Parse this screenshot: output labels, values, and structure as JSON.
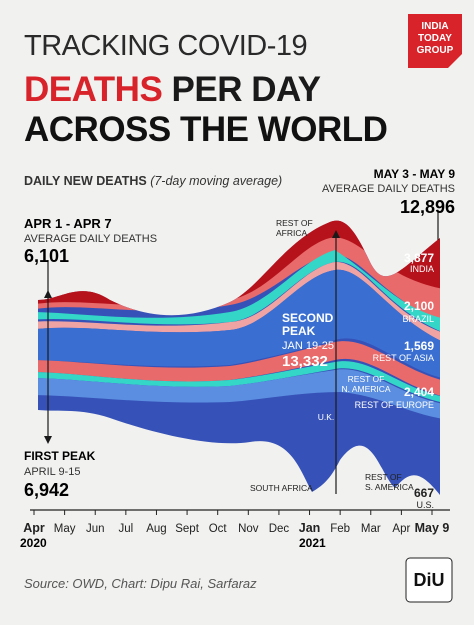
{
  "header": {
    "title_line1": "TRACKING COVID-19",
    "title_line2a": "DEATHS",
    "title_line2b": " PER DAY",
    "title_line3": "ACROSS THE WORLD",
    "logo_line1": "INDIA",
    "logo_line2": "TODAY",
    "logo_line3": "GROUP"
  },
  "subtitle": {
    "main": "DAILY NEW DEATHS",
    "note": "(7-day moving average)"
  },
  "annotations": {
    "first_week_head": "APR 1 - APR 7",
    "first_week_sub": "AVERAGE DAILY DEATHS",
    "first_week_value": "6,101",
    "last_week_head": "MAY 3 - MAY 9",
    "last_week_sub": "AVERAGE DAILY DEATHS",
    "last_week_value": "12,896",
    "first_peak_head": "FIRST PEAK",
    "first_peak_dates": "APRIL 9-15",
    "first_peak_value": "6,942",
    "second_peak_head1": "SECOND",
    "second_peak_head2": "PEAK",
    "second_peak_dates": "JAN 19-25",
    "second_peak_value": "13,332"
  },
  "colors": {
    "india": "#b5121b",
    "brazil": "#e86a6a",
    "rest_of_asia": "#f0a3a3",
    "rest_of_n_america": "#3a6fd1",
    "rest_of_europe": "#5b8ee0",
    "us": "#3652b8",
    "rest_of_africa": "#f27b7b",
    "accent_teal": "#34d6c8",
    "title_red": "#d8232a"
  },
  "chart_data": {
    "type": "area",
    "x": [
      "Apr 2020",
      "May",
      "Jun",
      "Jul",
      "Aug",
      "Sept",
      "Oct",
      "Nov",
      "Dec",
      "Jan 2021",
      "Feb",
      "Mar",
      "Apr",
      "May 9"
    ],
    "series_labels": [
      {
        "name": "INDIA",
        "value": "3,877"
      },
      {
        "name": "BRAZIL",
        "value": "2,100"
      },
      {
        "name": "REST OF ASIA",
        "value": "1,569"
      },
      {
        "name": "REST OF EUROPE",
        "value": "2,404"
      },
      {
        "name": "U.S.",
        "value": "667"
      },
      {
        "name": "REST OF AFRICA",
        "value": ""
      },
      {
        "name": "REST OF N. AMERICA",
        "value": ""
      },
      {
        "name": "U.K.",
        "value": ""
      },
      {
        "name": "SOUTH AFRICA",
        "value": ""
      },
      {
        "name": "REST OF S. AMERICA",
        "value": ""
      }
    ],
    "total": [
      6101,
      6942,
      4500,
      4700,
      5500,
      5600,
      5200,
      5500,
      9000,
      11500,
      13332,
      10000,
      8500,
      10000,
      12896
    ],
    "total_dates": [
      "Apr 1-7",
      "Apr 9-15",
      "May",
      "Jun",
      "Jul",
      "Aug",
      "Sept",
      "Oct",
      "Nov",
      "Dec",
      "Jan 19-25",
      "Feb",
      "Mar",
      "Apr",
      "May 3-9"
    ]
  },
  "axis": {
    "ticks": [
      "Apr",
      "May",
      "Jun",
      "Jul",
      "Aug",
      "Sept",
      "Oct",
      "Nov",
      "Dec",
      "Jan",
      "Feb",
      "Mar",
      "Apr",
      "May 9"
    ],
    "year_2020": "2020",
    "year_2021": "2021"
  },
  "footer": {
    "source_label": "Source:",
    "source_text": " OWD, Chart: Dipu Rai, Sarfaraz",
    "brand": "DiU"
  }
}
